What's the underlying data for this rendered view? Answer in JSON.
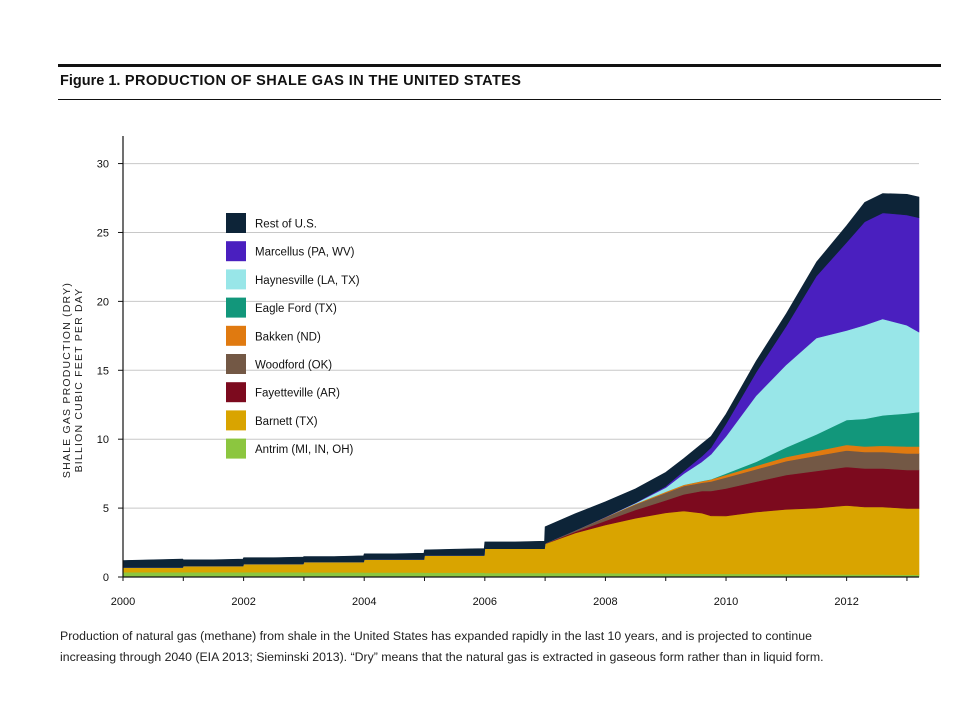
{
  "figure": {
    "title_lead": "Figure 1.",
    "title_rest": "PRODUCTION OF SHALE GAS IN THE UNITED STATES",
    "caption_line1": "Production of natural gas (methane) from shale in the United States has expanded rapidly in the last 10 years, and is projected to continue",
    "caption_line2": "increasing through 2040 (EIA 2013; Sieminski 2013). “Dry” means that the natural gas is extracted in gaseous form rather than in liquid form."
  },
  "chart_data": {
    "type": "area",
    "stacked": true,
    "ylabel_line1": "SHALE GAS PRODUCTION (DRY)",
    "ylabel_line2": "BILLION CUBIC FEET PER DAY",
    "xlim": [
      2000,
      2013.2
    ],
    "ylim": [
      0,
      32
    ],
    "yticks": [
      0,
      5,
      10,
      15,
      20,
      25,
      30
    ],
    "xticks": [
      2000,
      2002,
      2004,
      2006,
      2008,
      2010,
      2012
    ],
    "grid": true,
    "legend_position": "top-left",
    "x": [
      2000,
      2000.5,
      2000.99,
      2001,
      2001.5,
      2001.99,
      2002,
      2002.5,
      2002.99,
      2003,
      2003.5,
      2003.99,
      2004,
      2004.5,
      2004.99,
      2005,
      2005.5,
      2005.99,
      2006,
      2006.5,
      2006.99,
      2007,
      2007.5,
      2008,
      2008.5,
      2009,
      2009.3,
      2009.6,
      2009.75,
      2010,
      2010.5,
      2011,
      2011.5,
      2012,
      2012.3,
      2012.6,
      2013,
      2013.2
    ],
    "series": [
      {
        "name": "Antrim (MI, IN, OH)",
        "color": "#8cc63f",
        "values": [
          0.35,
          0.35,
          0.35,
          0.35,
          0.35,
          0.35,
          0.35,
          0.35,
          0.35,
          0.34,
          0.34,
          0.34,
          0.33,
          0.33,
          0.33,
          0.32,
          0.32,
          0.32,
          0.3,
          0.3,
          0.3,
          0.3,
          0.29,
          0.28,
          0.27,
          0.26,
          0.25,
          0.24,
          0.24,
          0.23,
          0.22,
          0.21,
          0.2,
          0.19,
          0.18,
          0.18,
          0.17,
          0.17
        ]
      },
      {
        "name": "Barnett (TX)",
        "color": "#d9a400",
        "values": [
          0.35,
          0.35,
          0.35,
          0.45,
          0.45,
          0.45,
          0.6,
          0.6,
          0.6,
          0.75,
          0.75,
          0.75,
          0.95,
          0.95,
          0.95,
          1.25,
          1.25,
          1.25,
          1.75,
          1.75,
          1.75,
          2.1,
          2.9,
          3.5,
          4.0,
          4.4,
          4.55,
          4.4,
          4.2,
          4.2,
          4.5,
          4.7,
          4.8,
          5.0,
          4.9,
          4.9,
          4.8,
          4.8
        ]
      },
      {
        "name": "Fayetteville (AR)",
        "color": "#7c0a1e",
        "values": [
          0,
          0,
          0,
          0,
          0,
          0,
          0,
          0,
          0,
          0,
          0,
          0,
          0,
          0,
          0,
          0,
          0,
          0,
          0,
          0,
          0,
          0.02,
          0.1,
          0.3,
          0.6,
          0.9,
          1.2,
          1.6,
          1.8,
          2.0,
          2.2,
          2.5,
          2.7,
          2.8,
          2.8,
          2.8,
          2.8,
          2.8
        ]
      },
      {
        "name": "Woodford (OK)",
        "color": "#735845",
        "values": [
          0,
          0,
          0,
          0,
          0,
          0,
          0,
          0,
          0,
          0,
          0,
          0,
          0,
          0,
          0,
          0,
          0,
          0,
          0,
          0,
          0,
          0.02,
          0.1,
          0.25,
          0.4,
          0.55,
          0.6,
          0.6,
          0.7,
          0.8,
          0.9,
          1.0,
          1.1,
          1.2,
          1.2,
          1.2,
          1.2,
          1.2
        ]
      },
      {
        "name": "Bakken (ND)",
        "color": "#e07a10",
        "values": [
          0,
          0,
          0,
          0,
          0,
          0,
          0,
          0,
          0,
          0,
          0,
          0,
          0,
          0,
          0,
          0,
          0,
          0,
          0,
          0,
          0,
          0,
          0,
          0.02,
          0.05,
          0.08,
          0.1,
          0.12,
          0.14,
          0.18,
          0.25,
          0.3,
          0.35,
          0.4,
          0.4,
          0.45,
          0.5,
          0.5
        ]
      },
      {
        "name": "Eagle Ford (TX)",
        "color": "#12977b",
        "values": [
          0,
          0,
          0,
          0,
          0,
          0,
          0,
          0,
          0,
          0,
          0,
          0,
          0,
          0,
          0,
          0,
          0,
          0,
          0,
          0,
          0,
          0,
          0,
          0,
          0,
          0,
          0,
          0.01,
          0.02,
          0.1,
          0.3,
          0.7,
          1.2,
          1.8,
          2.0,
          2.2,
          2.4,
          2.5
        ]
      },
      {
        "name": "Haynesville (LA, TX)",
        "color": "#98e6e8",
        "values": [
          0,
          0,
          0,
          0,
          0,
          0,
          0,
          0,
          0,
          0,
          0,
          0,
          0,
          0,
          0,
          0,
          0,
          0,
          0,
          0,
          0,
          0,
          0,
          0,
          0.05,
          0.3,
          0.8,
          1.4,
          1.8,
          2.7,
          4.8,
          6.0,
          7.0,
          6.5,
          6.8,
          7.0,
          6.4,
          5.8
        ]
      },
      {
        "name": "Marcellus (PA, WV)",
        "color": "#4a1fbf",
        "values": [
          0,
          0,
          0,
          0,
          0,
          0,
          0,
          0,
          0,
          0,
          0,
          0,
          0,
          0,
          0,
          0,
          0,
          0,
          0,
          0,
          0,
          0,
          0,
          0.01,
          0.03,
          0.1,
          0.2,
          0.4,
          0.5,
          0.9,
          1.7,
          2.8,
          4.5,
          6.4,
          7.5,
          7.7,
          8.0,
          8.3
        ]
      },
      {
        "name": "Rest of U.S.",
        "color": "#0d2438",
        "values": [
          0.5,
          0.55,
          0.6,
          0.45,
          0.45,
          0.5,
          0.45,
          0.45,
          0.5,
          0.4,
          0.4,
          0.45,
          0.4,
          0.4,
          0.45,
          0.4,
          0.45,
          0.5,
          0.5,
          0.5,
          0.55,
          1.2,
          1.2,
          1.1,
          1.0,
          1.0,
          0.9,
          0.9,
          0.8,
          0.7,
          0.8,
          0.9,
          1.0,
          1.2,
          1.4,
          1.4,
          1.5,
          1.5
        ]
      }
    ]
  }
}
